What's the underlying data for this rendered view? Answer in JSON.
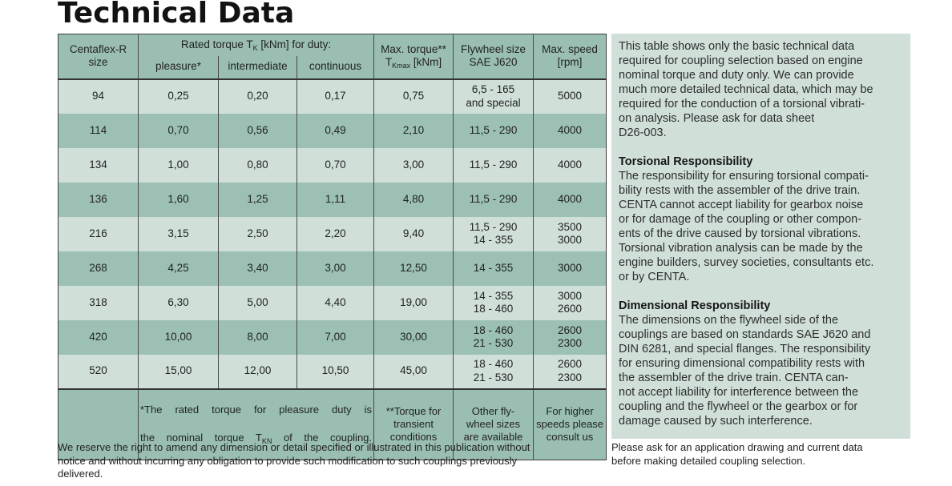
{
  "title": "Technical Data",
  "colors": {
    "header_bg": "#9abfb2",
    "row_light": "#d0e0d9",
    "row_dark": "#9cc1b4",
    "panel_bg": "#d0e0d9",
    "border": "#4a4a4a",
    "text": "#222222"
  },
  "table": {
    "header": {
      "size": "Centaflex-R\nsize",
      "rated_torque": {
        "pre": "Rated torque T",
        "sub": "K",
        "post": " [kNm] for duty:"
      },
      "duty_cols": {
        "pleasure": "pleasure*",
        "intermediate": "intermediate",
        "continuous": "continuous"
      },
      "max_torque": {
        "line1": "Max. torque**",
        "line2_pre": "T",
        "line2_sub": "Kmax",
        "line2_post": " [kNm]"
      },
      "flywheel": "Flywheel size\nSAE J620",
      "speed": "Max. speed\n[rpm]"
    },
    "row_keys": [
      "size",
      "pleasure",
      "intermediate",
      "continuous",
      "max_torque",
      "flywheel",
      "speed"
    ],
    "rows": [
      {
        "size": "94",
        "pleasure": "0,25",
        "intermediate": "0,20",
        "continuous": "0,17",
        "max_torque": "0,75",
        "flywheel": "6,5 - 165\nand special",
        "speed": "5000"
      },
      {
        "size": "114",
        "pleasure": "0,70",
        "intermediate": "0,56",
        "continuous": "0,49",
        "max_torque": "2,10",
        "flywheel": "11,5 - 290",
        "speed": "4000"
      },
      {
        "size": "134",
        "pleasure": "1,00",
        "intermediate": "0,80",
        "continuous": "0,70",
        "max_torque": "3,00",
        "flywheel": "11,5 - 290",
        "speed": "4000"
      },
      {
        "size": "136",
        "pleasure": "1,60",
        "intermediate": "1,25",
        "continuous": "1,11",
        "max_torque": "4,80",
        "flywheel": "11,5 - 290",
        "speed": "4000"
      },
      {
        "size": "216",
        "pleasure": "3,15",
        "intermediate": "2,50",
        "continuous": "2,20",
        "max_torque": "9,40",
        "flywheel": "11,5 - 290\n14 - 355",
        "speed": "3500\n3000"
      },
      {
        "size": "268",
        "pleasure": "4,25",
        "intermediate": "3,40",
        "continuous": "3,00",
        "max_torque": "12,50",
        "flywheel": "14 - 355",
        "speed": "3000"
      },
      {
        "size": "318",
        "pleasure": "6,30",
        "intermediate": "5,00",
        "continuous": "4,40",
        "max_torque": "19,00",
        "flywheel": "14 - 355\n18 - 460",
        "speed": "3000\n2600"
      },
      {
        "size": "420",
        "pleasure": "10,00",
        "intermediate": "8,00",
        "continuous": "7,00",
        "max_torque": "30,00",
        "flywheel": "18 - 460\n21 - 530",
        "speed": "2600\n2300"
      },
      {
        "size": "520",
        "pleasure": "15,00",
        "intermediate": "12,00",
        "continuous": "10,50",
        "max_torque": "45,00",
        "flywheel": "18 - 460\n21 - 530",
        "speed": "2600\n2300"
      }
    ],
    "footer": {
      "note_line1": "*The rated torque for pleasure duty is",
      "note_line2": {
        "pre": "the nominal torque T",
        "sub": "KN",
        "post": " of the coupling."
      },
      "torque_note": "**Torque for\ntransient\nconditions",
      "flywheel_note": "Other fly-\nwheel sizes\nare available",
      "speed_note": "For higher\nspeeds please\nconsult us"
    }
  },
  "side_panel": {
    "intro": "This table shows only the basic technical data\nrequired for coupling selection based on engine\nnominal torque and duty only. We can provide\nmuch more detailed technical data, which may be\nrequired for the conduction of a torsional vibrati-\non analysis. Please ask for data sheet\nD26-003.",
    "torsional_heading": "Torsional Responsibility",
    "torsional_text": "The responsibility for ensuring torsional compati-\nbility rests with the assembler of the drive train.\nCENTA cannot accept liability for gearbox noise\nor for damage of the coupling or other compon-\nents of the drive caused by torsional vibrations.\nTorsional vibration analysis can be made by the\nengine builders, survey societies, consultants etc.\nor by CENTA.",
    "dimensional_heading": "Dimensional Responsibility",
    "dimensional_text": "The dimensions on the flywheel side of the\ncouplings are based on standards SAE J620 and\nDIN 6281, and special flanges. The responsibility\nfor ensuring dimensional compatibility rests with\nthe assembler of the drive train. CENTA can-\nnot accept liability for interference between the\ncoupling and the flywheel or the gearbox or for\ndamage caused by such interference."
  },
  "footnotes": {
    "left": "We reserve the right to amend any dimension or detail specified or illustrated in this publication without\nnotice and without incurring any obligation to provide such modification to such couplings previously\ndelivered.",
    "right": "Please ask for an application drawing and current data\nbefore making detailed coupling selection."
  }
}
